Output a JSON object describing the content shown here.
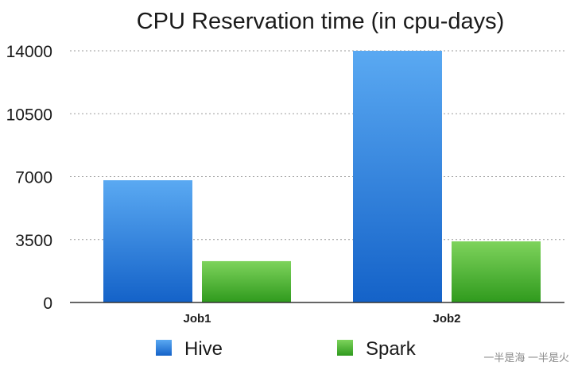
{
  "chart_data": {
    "type": "bar",
    "title": "CPU Reservation time (in cpu-days)",
    "categories": [
      "Job1",
      "Job2"
    ],
    "series": [
      {
        "name": "Hive",
        "values": [
          6800,
          14000
        ],
        "color_top": "#5aa9f2",
        "color_bottom": "#1462c8"
      },
      {
        "name": "Spark",
        "values": [
          2300,
          3400
        ],
        "color_top": "#7ed35c",
        "color_bottom": "#2f9a1d"
      }
    ],
    "yticks": [
      0,
      3500,
      7000,
      10500,
      14000
    ],
    "ytick_labels": [
      "0",
      "3500",
      "7000",
      "10500",
      "14000"
    ],
    "ylim": [
      0,
      14000
    ],
    "grid": true,
    "legend_position": "bottom",
    "xlabel": "",
    "ylabel": ""
  },
  "watermark": "一半是海 一半是火"
}
